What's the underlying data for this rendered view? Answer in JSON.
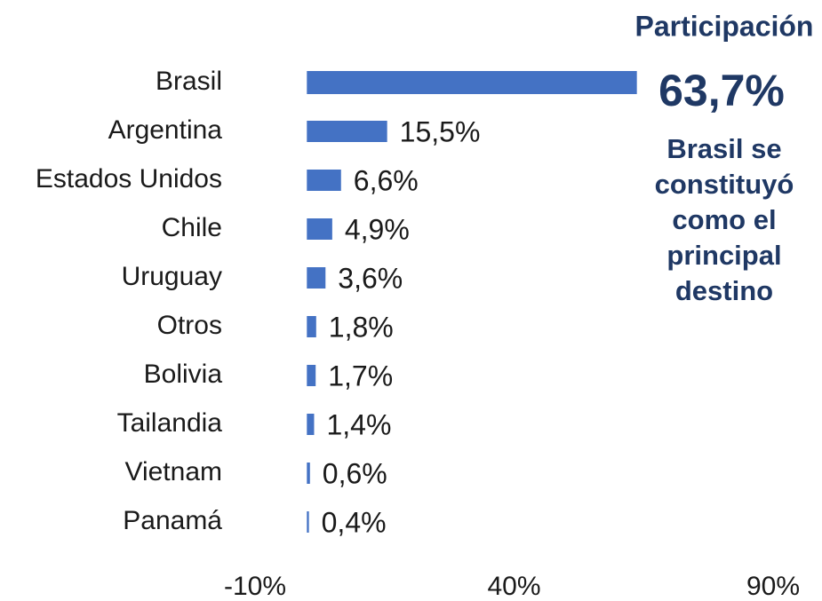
{
  "chart_data": {
    "type": "bar",
    "orientation": "horizontal",
    "categories": [
      "Brasil",
      "Argentina",
      "Estados Unidos",
      "Chile",
      "Uruguay",
      "Otros",
      "Bolivia",
      "Tailandia",
      "Vietnam",
      "Panamá"
    ],
    "values": [
      63.7,
      15.5,
      6.6,
      4.9,
      3.6,
      1.8,
      1.7,
      1.4,
      0.6,
      0.4
    ],
    "value_labels": [
      "63,7%",
      "15,5%",
      "6,6%",
      "4,9%",
      "3,6%",
      "1,8%",
      "1,7%",
      "1,4%",
      "0,6%",
      "0,4%"
    ],
    "color": "#4472c4",
    "xlim": [
      -10,
      90
    ],
    "xticks": [
      {
        "value": -10,
        "label": "-10%"
      },
      {
        "value": 40,
        "label": "40%"
      },
      {
        "value": 90,
        "label": "90%"
      }
    ],
    "grid": false,
    "annotation_title": "Participación",
    "annotation_lines": [
      "Brasil se",
      "constituyó",
      "como el",
      "principal",
      "destino"
    ]
  }
}
